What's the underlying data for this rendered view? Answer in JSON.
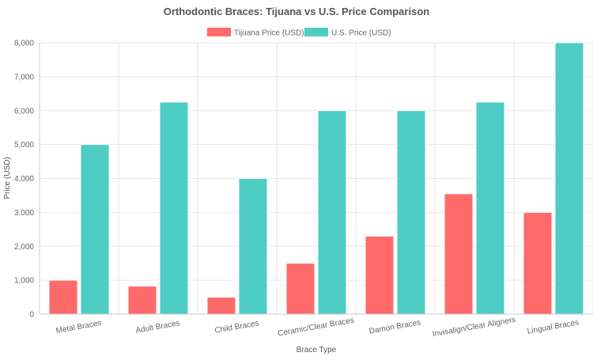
{
  "chart_data": {
    "type": "bar",
    "title": "Orthodontic Braces: Tijuana vs U.S. Price Comparison",
    "xlabel": "Brace Type",
    "ylabel": "Price (USD)",
    "ylim": [
      0,
      8000
    ],
    "yticks": [
      "0",
      "1,000",
      "2,000",
      "3,000",
      "4,000",
      "5,000",
      "6,000",
      "7,000",
      "8,000"
    ],
    "ytick_values": [
      0,
      1000,
      2000,
      3000,
      4000,
      5000,
      6000,
      7000,
      8000
    ],
    "grid": true,
    "legend_position": "top-center",
    "categories": [
      "Metal Braces",
      "Adult Braces",
      "Child Braces",
      "Ceramic/Clear Braces",
      "Damon Braces",
      "Invisalign/Clear Aligners",
      "Lingual Braces"
    ],
    "series": [
      {
        "name": "Tijuana Price (USD)",
        "color": "#ff6b6b",
        "values": [
          1000,
          825,
          500,
          1500,
          2300,
          3550,
          3000
        ]
      },
      {
        "name": "U.S. Price (USD)",
        "color": "#4ecdc4",
        "values": [
          5000,
          6250,
          4000,
          6000,
          6000,
          6250,
          8000
        ]
      }
    ]
  }
}
